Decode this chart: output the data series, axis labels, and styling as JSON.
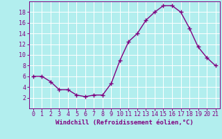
{
  "x": [
    0,
    1,
    2,
    3,
    4,
    5,
    6,
    7,
    8,
    9,
    10,
    11,
    12,
    13,
    14,
    15,
    16,
    17,
    18,
    19,
    20,
    21
  ],
  "y": [
    6,
    6,
    5,
    3.5,
    3.5,
    2.5,
    2.2,
    2.5,
    2.5,
    4.7,
    9,
    12.5,
    14,
    16.5,
    18,
    19.2,
    19.2,
    18,
    15,
    11.5,
    9.5,
    8
  ],
  "line_color": "#800080",
  "marker": "+",
  "marker_color": "#800080",
  "bg_color": "#b2eeee",
  "grid_color": "#c8e8e8",
  "xlabel": "Windchill (Refroidissement éolien,°C)",
  "xlabel_color": "#800080",
  "tick_color": "#800080",
  "ylim": [
    0,
    20
  ],
  "xlim": [
    -0.5,
    21.5
  ],
  "yticks": [
    2,
    4,
    6,
    8,
    10,
    12,
    14,
    16,
    18
  ],
  "xticks": [
    0,
    1,
    2,
    3,
    4,
    5,
    6,
    7,
    8,
    9,
    10,
    11,
    12,
    13,
    14,
    15,
    16,
    17,
    18,
    19,
    20,
    21
  ],
  "line_width": 1.0,
  "marker_size": 5,
  "tick_fontsize": 6.0,
  "xlabel_fontsize": 6.5
}
